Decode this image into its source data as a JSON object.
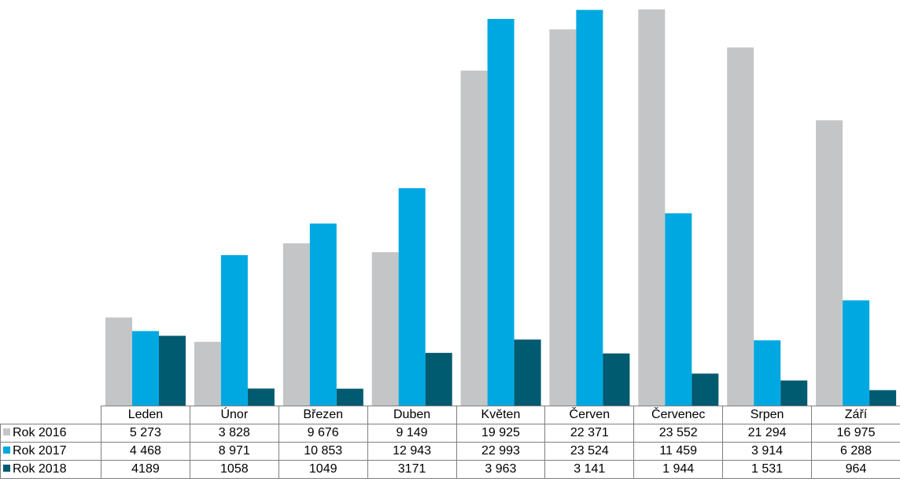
{
  "chart_data": {
    "type": "bar",
    "categories": [
      "Leden",
      "Únor",
      "Březen",
      "Duben",
      "Květen",
      "Červen",
      "Červenec",
      "Srpen",
      "Září"
    ],
    "series": [
      {
        "name": "Rok 2016",
        "color": "#c4c5c7",
        "values": [
          5273,
          3828,
          9676,
          9149,
          19925,
          22371,
          23552,
          21294,
          16975
        ],
        "labels": [
          "5 273",
          "3 828",
          "9 676",
          "9 149",
          "19 925",
          "22 371",
          "23 552",
          "21 294",
          "16 975"
        ]
      },
      {
        "name": "Rok 2017",
        "color": "#00a8e1",
        "values": [
          4468,
          8971,
          10853,
          12943,
          22993,
          23524,
          11459,
          3914,
          6288
        ],
        "labels": [
          "4 468",
          "8 971",
          "10 853",
          "12 943",
          "22 993",
          "23 524",
          "11 459",
          "3 914",
          "6 288"
        ]
      },
      {
        "name": "Rok 2018",
        "color": "#005a70",
        "values": [
          4189,
          1058,
          1049,
          3171,
          3963,
          3141,
          1944,
          1531,
          964
        ],
        "labels": [
          "4189",
          "1058",
          "1049",
          "3171",
          "3 963",
          "3 141",
          "1 944",
          "1 531",
          "964"
        ]
      }
    ],
    "ylim": [
      0,
      23552
    ],
    "grid": false,
    "legend": "data-table"
  }
}
